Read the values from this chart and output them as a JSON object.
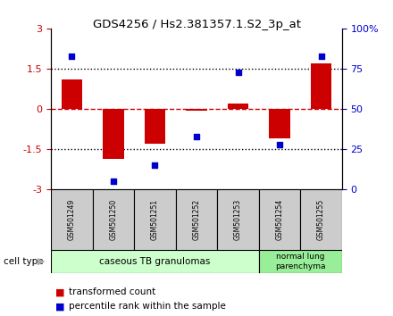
{
  "title": "GDS4256 / Hs2.381357.1.S2_3p_at",
  "samples": [
    "GSM501249",
    "GSM501250",
    "GSM501251",
    "GSM501252",
    "GSM501253",
    "GSM501254",
    "GSM501255"
  ],
  "transformed_counts": [
    1.1,
    -1.85,
    -1.3,
    -0.05,
    0.2,
    -1.1,
    1.7
  ],
  "percentile_ranks": [
    83,
    5,
    15,
    33,
    73,
    28,
    83
  ],
  "ylim_left": [
    -3,
    3
  ],
  "yticks_left": [
    -3,
    -1.5,
    0,
    1.5,
    3
  ],
  "yticks_right": [
    0,
    25,
    50,
    75,
    100
  ],
  "yticklabels_right": [
    "0",
    "25",
    "50",
    "75",
    "100%"
  ],
  "bar_color": "#cc0000",
  "dot_color": "#0000cc",
  "hline_color": "#cc0000",
  "group0_color": "#ccffcc",
  "group1_color": "#99ee99",
  "group0_label": "caseous TB granulomas",
  "group1_label": "normal lung\nparenchyma",
  "sample_box_color": "#cccccc",
  "cell_type_label": "cell type",
  "legend_red": "transformed count",
  "legend_blue": "percentile rank within the sample",
  "bar_width": 0.5
}
